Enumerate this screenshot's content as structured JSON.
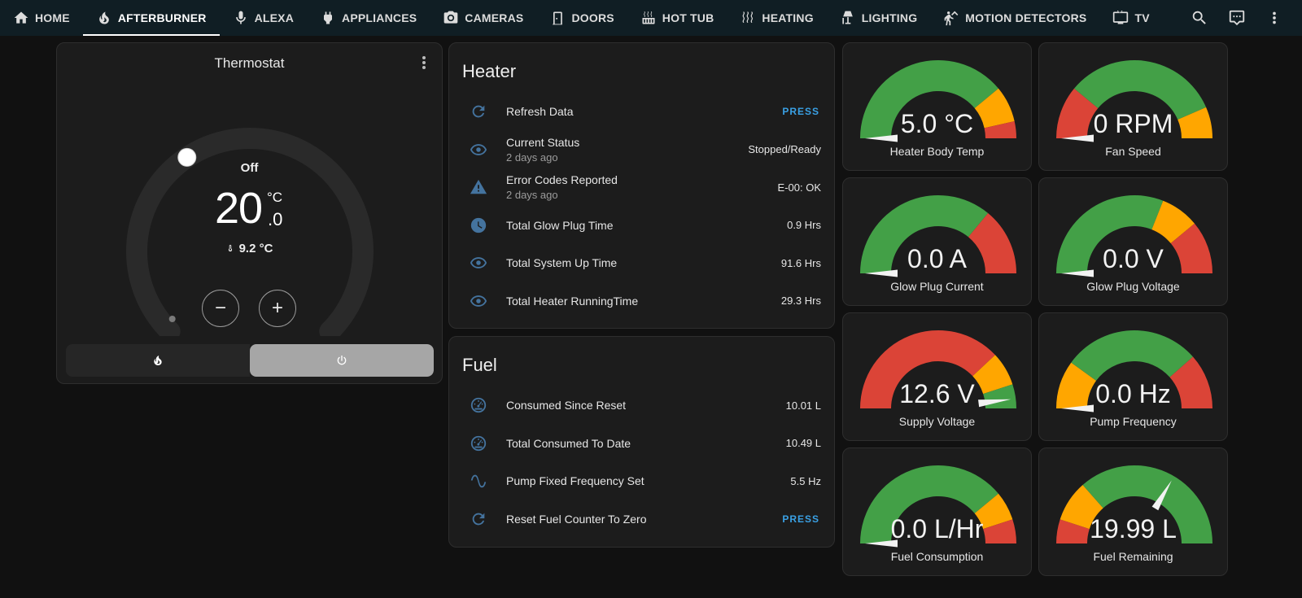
{
  "nav": {
    "tabs": [
      {
        "label": "HOME",
        "icon": "home-icon"
      },
      {
        "label": "AFTERBURNER",
        "icon": "fire-icon",
        "active": true
      },
      {
        "label": "ALEXA",
        "icon": "microphone-icon"
      },
      {
        "label": "APPLIANCES",
        "icon": "power-plug-icon"
      },
      {
        "label": "CAMERAS",
        "icon": "camera-icon"
      },
      {
        "label": "DOORS",
        "icon": "door-icon"
      },
      {
        "label": "HOT TUB",
        "icon": "hot-tub-icon"
      },
      {
        "label": "HEATING",
        "icon": "heat-waves-icon"
      },
      {
        "label": "LIGHTING",
        "icon": "floor-lamp-icon"
      },
      {
        "label": "MOTION DETECTORS",
        "icon": "motion-sensor-icon"
      },
      {
        "label": "TV",
        "icon": "television-icon"
      }
    ],
    "actions": [
      "search-icon",
      "assist-chat-icon",
      "more-vert-icon"
    ]
  },
  "thermostat": {
    "title": "Thermostat",
    "mode": "Off",
    "target_int": "20",
    "target_dec": ".0",
    "unit": "°C",
    "current": "9.2 °C",
    "minus": "−",
    "plus": "+",
    "modes": [
      {
        "icon": "flame-icon",
        "active": false
      },
      {
        "icon": "power-icon",
        "active": true
      }
    ]
  },
  "heater": {
    "title": "Heater",
    "rows": [
      {
        "name": "Refresh Data",
        "icon": "refresh-icon",
        "action": "PRESS"
      },
      {
        "name": "Current Status",
        "sub": "2 days ago",
        "value": "Stopped/Ready",
        "icon": "eye-icon"
      },
      {
        "name": "Error Codes Reported",
        "sub": "2 days ago",
        "value": "E-00: OK",
        "icon": "alert-icon"
      },
      {
        "name": "Total Glow Plug Time",
        "value": "0.9 Hrs",
        "icon": "clock-icon"
      },
      {
        "name": "Total System Up Time",
        "value": "91.6 Hrs",
        "icon": "eye-icon"
      },
      {
        "name": "Total Heater RunningTime",
        "value": "29.3 Hrs",
        "icon": "eye-icon"
      }
    ]
  },
  "fuel": {
    "title": "Fuel",
    "rows": [
      {
        "name": "Consumed Since Reset",
        "value": "10.01 L",
        "icon": "gauge-icon"
      },
      {
        "name": "Total Consumed To Date",
        "value": "10.49 L",
        "icon": "gauge-icon"
      },
      {
        "name": "Pump Fixed Frequency Set",
        "value": "5.5 Hz",
        "icon": "sine-wave-icon"
      },
      {
        "name": "Reset Fuel Counter To Zero",
        "icon": "refresh-icon",
        "action": "PRESS"
      }
    ]
  },
  "colors": {
    "green": "#43a047",
    "yellow": "#ffa600",
    "red": "#db4437",
    "needle": "#f2f2f2",
    "icon": "#44739e",
    "press": "#3aa1e5"
  },
  "gauges": [
    {
      "name": "Heater Body Temp",
      "value": "5.0 °C",
      "fraction": 0.0,
      "segments": [
        {
          "from": 0,
          "to": 0.78,
          "color": "green"
        },
        {
          "from": 0.78,
          "to": 0.93,
          "color": "yellow"
        },
        {
          "from": 0.93,
          "to": 1,
          "color": "red"
        }
      ]
    },
    {
      "name": "Fan Speed",
      "value": "0 RPM",
      "fraction": 0.0,
      "segments": [
        {
          "from": 0,
          "to": 0.22,
          "color": "red"
        },
        {
          "from": 0.22,
          "to": 0.87,
          "color": "green"
        },
        {
          "from": 0.87,
          "to": 1,
          "color": "yellow"
        }
      ]
    },
    {
      "name": "Glow Plug Current",
      "value": "0.0 A",
      "fraction": 0.0,
      "segments": [
        {
          "from": 0,
          "to": 0.72,
          "color": "green"
        },
        {
          "from": 0.72,
          "to": 1,
          "color": "red"
        }
      ]
    },
    {
      "name": "Glow Plug Voltage",
      "value": "0.0 V",
      "fraction": 0.0,
      "segments": [
        {
          "from": 0,
          "to": 0.62,
          "color": "green"
        },
        {
          "from": 0.62,
          "to": 0.78,
          "color": "yellow"
        },
        {
          "from": 0.78,
          "to": 1,
          "color": "red"
        }
      ]
    },
    {
      "name": "Supply Voltage",
      "value": "12.6 V",
      "fraction": 0.96,
      "segments": [
        {
          "from": 0,
          "to": 0.76,
          "color": "red"
        },
        {
          "from": 0.76,
          "to": 0.9,
          "color": "yellow"
        },
        {
          "from": 0.9,
          "to": 1,
          "color": "green"
        }
      ]
    },
    {
      "name": "Pump Frequency",
      "value": "0.0 Hz",
      "fraction": 0.0,
      "segments": [
        {
          "from": 0,
          "to": 0.2,
          "color": "yellow"
        },
        {
          "from": 0.2,
          "to": 0.77,
          "color": "green"
        },
        {
          "from": 0.77,
          "to": 1,
          "color": "red"
        }
      ]
    },
    {
      "name": "Fuel Consumption",
      "value": "0.0 L/Hr",
      "fraction": 0.0,
      "segments": [
        {
          "from": 0,
          "to": 0.78,
          "color": "green"
        },
        {
          "from": 0.78,
          "to": 0.9,
          "color": "yellow"
        },
        {
          "from": 0.9,
          "to": 1,
          "color": "red"
        }
      ]
    },
    {
      "name": "Fuel Remaining",
      "value": "19.99 L",
      "fraction": 0.67,
      "segments": [
        {
          "from": 0,
          "to": 0.1,
          "color": "red"
        },
        {
          "from": 0.1,
          "to": 0.27,
          "color": "yellow"
        },
        {
          "from": 0.27,
          "to": 1,
          "color": "green"
        }
      ]
    }
  ]
}
